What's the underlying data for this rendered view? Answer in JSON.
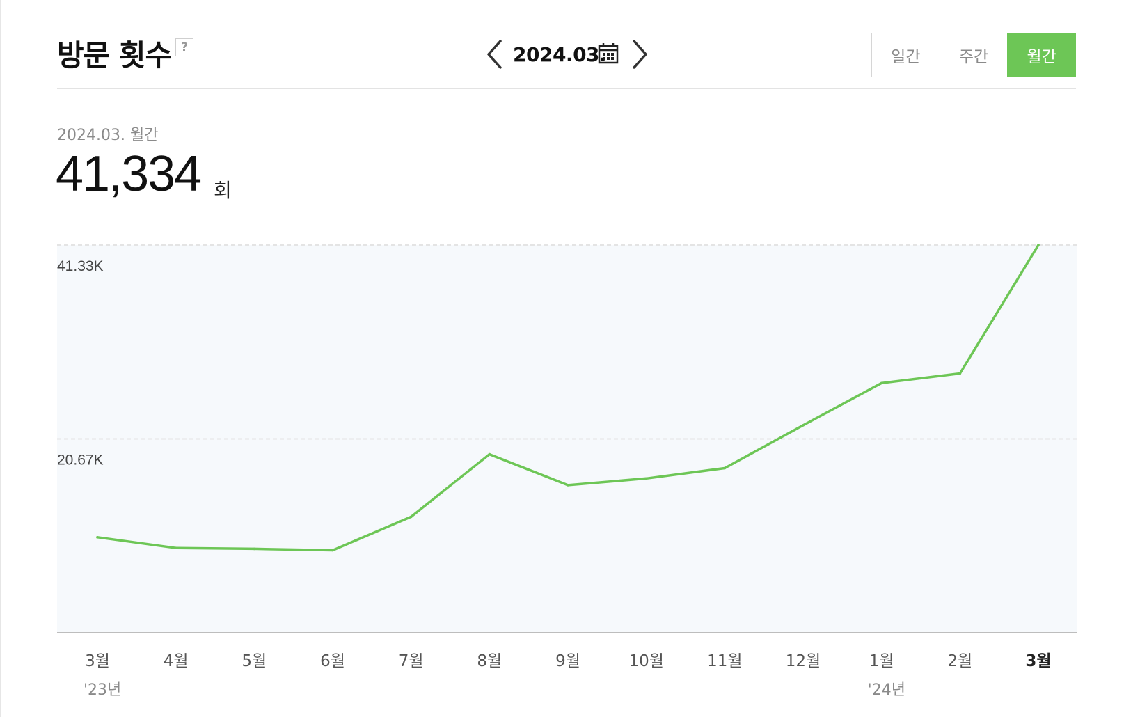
{
  "header": {
    "title": "방문 횟수",
    "help_label": "?",
    "date_label": "2024.03.",
    "tabs": [
      {
        "label": "일간",
        "active": false
      },
      {
        "label": "주간",
        "active": false
      },
      {
        "label": "월간",
        "active": true
      }
    ]
  },
  "summary": {
    "period_label": "2024.03. 월간",
    "value": "41,334",
    "unit": "회"
  },
  "colors": {
    "accent": "#6dc656",
    "line": "#6dc656",
    "plot_background": "#f6f9fc",
    "gridline": "#e4e4e4"
  },
  "icons": {
    "prev": "chevron-left-icon",
    "next": "chevron-right-icon",
    "calendar": "calendar-icon",
    "help": "help-icon"
  },
  "chart_data": {
    "type": "line",
    "categories": [
      "3월",
      "4월",
      "5월",
      "6월",
      "7월",
      "8월",
      "9월",
      "10월",
      "11월",
      "12월",
      "1월",
      "2월",
      "3월"
    ],
    "year_labels": [
      "'23년",
      "",
      "",
      "",
      "",
      "",
      "",
      "",
      "",
      "",
      "'24년",
      "",
      ""
    ],
    "highlighted_index": 12,
    "series": [
      {
        "values": [
          10180,
          9040,
          8950,
          8790,
          12360,
          19030,
          15740,
          16450,
          17550,
          22120,
          26620,
          27640,
          41334
        ]
      }
    ],
    "y_ticks": [
      {
        "value": 41334,
        "label": "41.33K"
      },
      {
        "value": 20667,
        "label": "20.67K"
      }
    ],
    "ylim": [
      0,
      41334
    ],
    "grid": true
  }
}
